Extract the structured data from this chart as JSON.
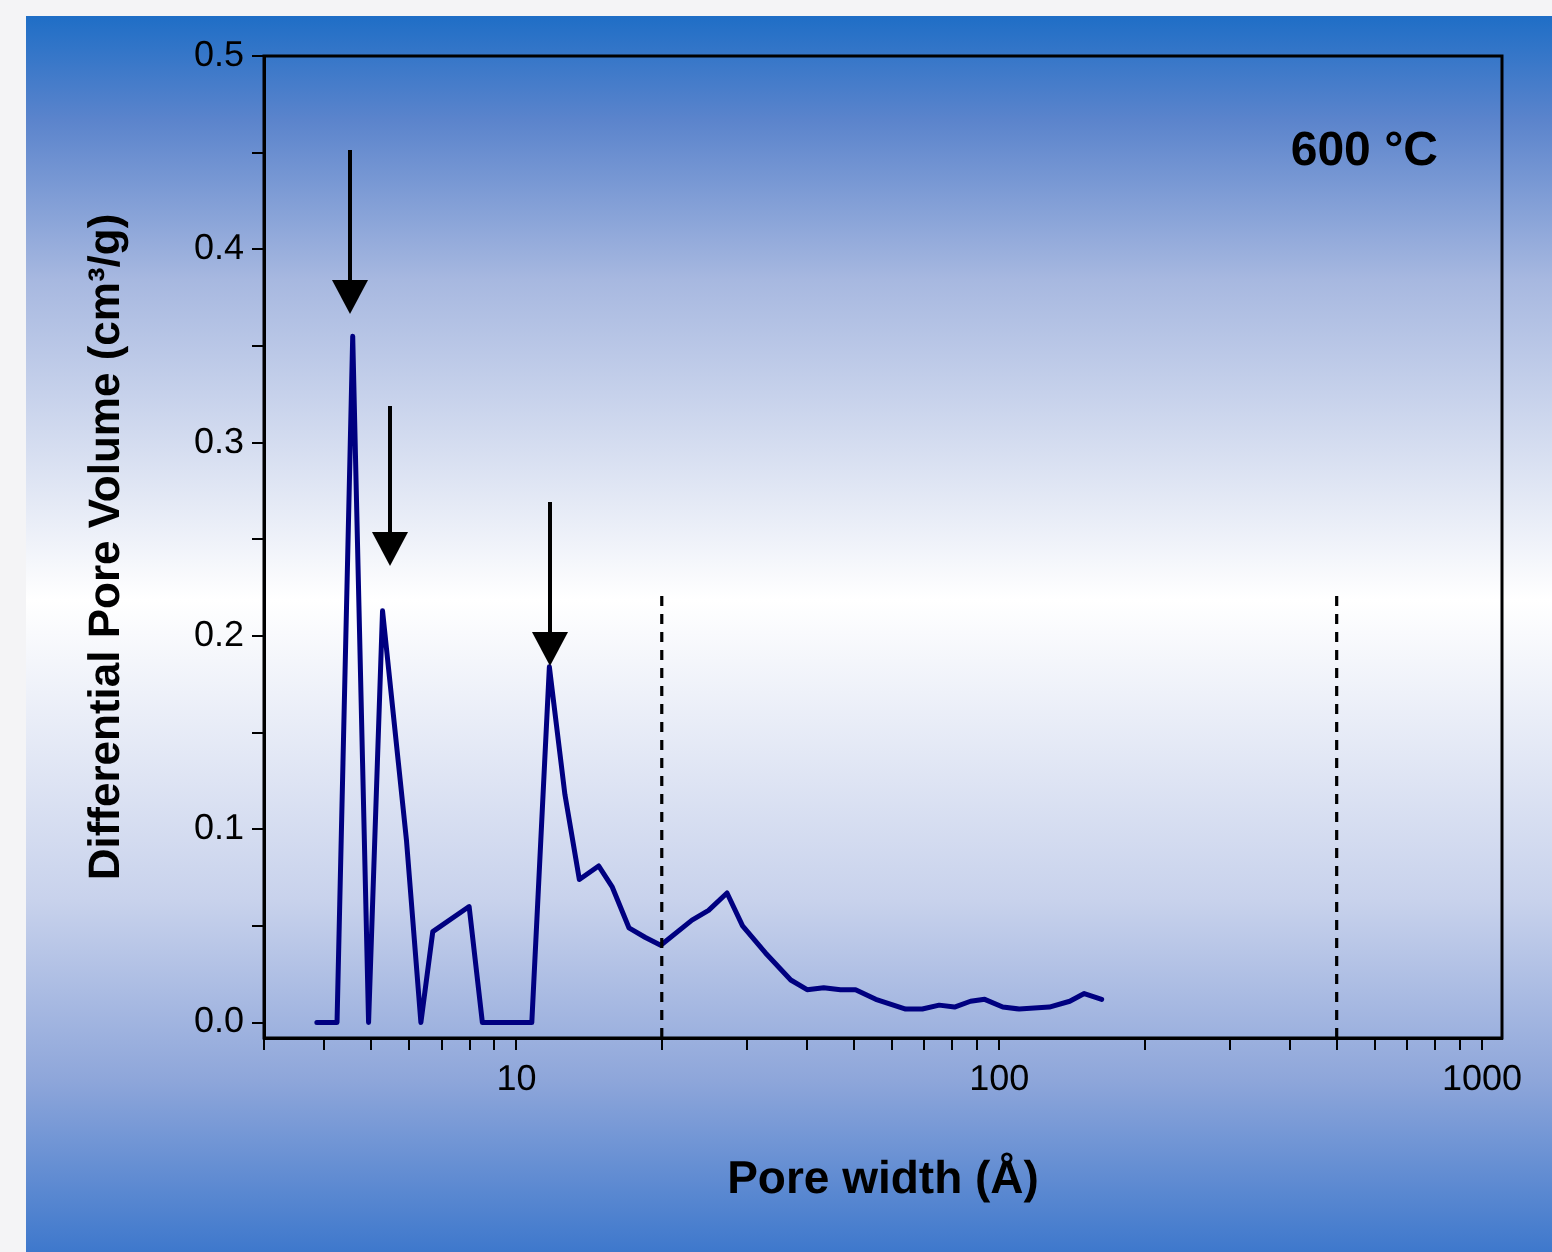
{
  "chart_data": {
    "type": "line",
    "xlabel": "Pore width (Å)",
    "ylabel": "Differential Pore Volume (cm³/g)",
    "annotations": [
      "600 °C"
    ],
    "log": "x",
    "marker": "none",
    "line_style": "solid",
    "xlim": [
      3,
      1100
    ],
    "xticks": [
      {
        "value": 3,
        "label": null
      },
      {
        "value": 4,
        "label": null
      },
      {
        "value": 5,
        "label": null
      },
      {
        "value": 6,
        "label": null
      },
      {
        "value": 7,
        "label": null
      },
      {
        "value": 8,
        "label": null
      },
      {
        "value": 9,
        "label": null
      },
      10,
      {
        "value": 20,
        "label": null
      },
      {
        "value": 30,
        "label": null
      },
      {
        "value": 40,
        "label": null
      },
      {
        "value": 50,
        "label": null
      },
      {
        "value": 60,
        "label": null
      },
      {
        "value": 70,
        "label": null
      },
      {
        "value": 80,
        "label": null
      },
      {
        "value": 90,
        "label": null
      },
      100,
      {
        "value": 200,
        "label": null
      },
      {
        "value": 300,
        "label": null
      },
      {
        "value": 400,
        "label": null
      },
      {
        "value": 500,
        "label": null
      },
      {
        "value": 600,
        "label": null
      },
      {
        "value": 700,
        "label": null
      },
      {
        "value": 800,
        "label": null
      },
      {
        "value": 900,
        "label": null
      },
      1000
    ],
    "ylim": [
      -0.008,
      0.5
    ],
    "yticks": [
      {
        "value": 0,
        "label": "0.0"
      },
      {
        "value": 0.05,
        "label": null
      },
      {
        "value": 0.1,
        "label": "0.1"
      },
      {
        "value": 0.15,
        "label": null
      },
      {
        "value": 0.2,
        "label": "0.2"
      },
      {
        "value": 0.25,
        "label": null
      },
      {
        "value": 0.3,
        "label": "0.3"
      },
      {
        "value": 0.35,
        "label": null
      },
      {
        "value": 0.4,
        "label": "0.4"
      },
      {
        "value": 0.45,
        "label": null
      },
      {
        "value": 0.5,
        "label": "0.5"
      }
    ],
    "ref_lines": [
      {
        "axis": "x",
        "value": 20,
        "color": "#000000",
        "line_style": "dashed"
      },
      {
        "axis": "x",
        "value": 500,
        "color": "#000000",
        "line_style": "dashed"
      }
    ],
    "series": [
      {
        "color": "#000080",
        "x": [
          3.86,
          4.25,
          4.58,
          4.94,
          5.28,
          5.92,
          6.34,
          6.71,
          7.98,
          8.5,
          10.76,
          11.7,
          12.6,
          13.5,
          14.8,
          15.8,
          17.1,
          18.5,
          19.9,
          23.1,
          25.0,
          27.3,
          29.4,
          32.8,
          37.0,
          40.0,
          43.3,
          46.9,
          50.4,
          55.5,
          64.0,
          69.3,
          75.1,
          80.8,
          87.2,
          93.3,
          101.7,
          110,
          127,
          140,
          150,
          163
        ],
        "values": [
          0,
          0,
          0.355,
          0,
          0.213,
          0.094,
          0,
          0.047,
          0.06,
          0,
          0,
          0.184,
          0.118,
          0.074,
          0.081,
          0.07,
          0.049,
          0.044,
          0.04,
          0.053,
          0.058,
          0.067,
          0.05,
          0.036,
          0.022,
          0.017,
          0.018,
          0.017,
          0.017,
          0.012,
          0.007,
          0.007,
          0.009,
          0.008,
          0.011,
          0.012,
          0.008,
          0.007,
          0.008,
          0.011,
          0.015,
          0.012
        ]
      }
    ]
  }
}
